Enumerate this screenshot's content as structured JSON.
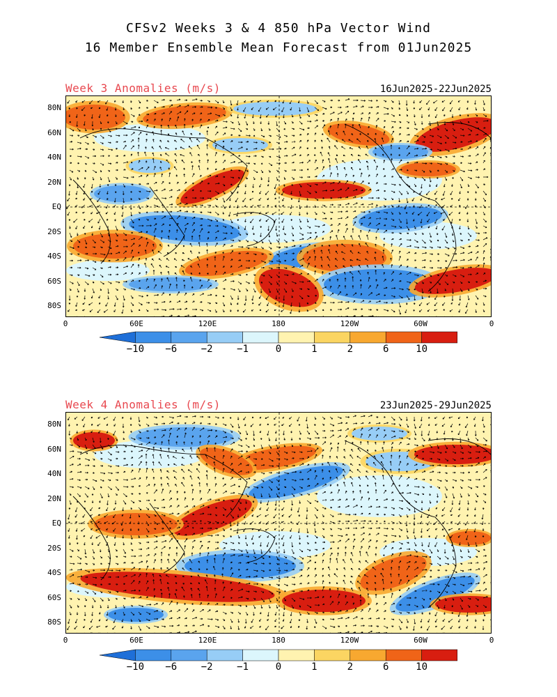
{
  "title": {
    "line1": "CFSv2 Weeks 3 & 4 850 hPa Vector Wind",
    "line2": "16 Member Ensemble Mean Forecast from 01Jun2025"
  },
  "panels": [
    {
      "label": "Week 3 Anomalies (m/s)",
      "dates": "16Jun2025-22Jun2025"
    },
    {
      "label": "Week 4 Anomalies (m/s)",
      "dates": "23Jun2025-29Jun2025"
    }
  ],
  "lat_labels": [
    "80N",
    "60N",
    "40N",
    "20N",
    "EQ",
    "20S",
    "40S",
    "60S",
    "80S"
  ],
  "lon_labels": [
    "0",
    "60E",
    "120E",
    "180",
    "120W",
    "60W",
    "0"
  ],
  "colorbar": {
    "labels": [
      "-10",
      "-6",
      "-2",
      "-1",
      "0",
      "1",
      "2",
      "6",
      "10"
    ],
    "colors": [
      "#1e6fd8",
      "#3c8fe8",
      "#5aa4ee",
      "#97cdf6",
      "#dcf6fc",
      "#fff3b0",
      "#fbd562",
      "#f8a830",
      "#f06418",
      "#d81e10",
      "#b00a0a"
    ]
  }
}
